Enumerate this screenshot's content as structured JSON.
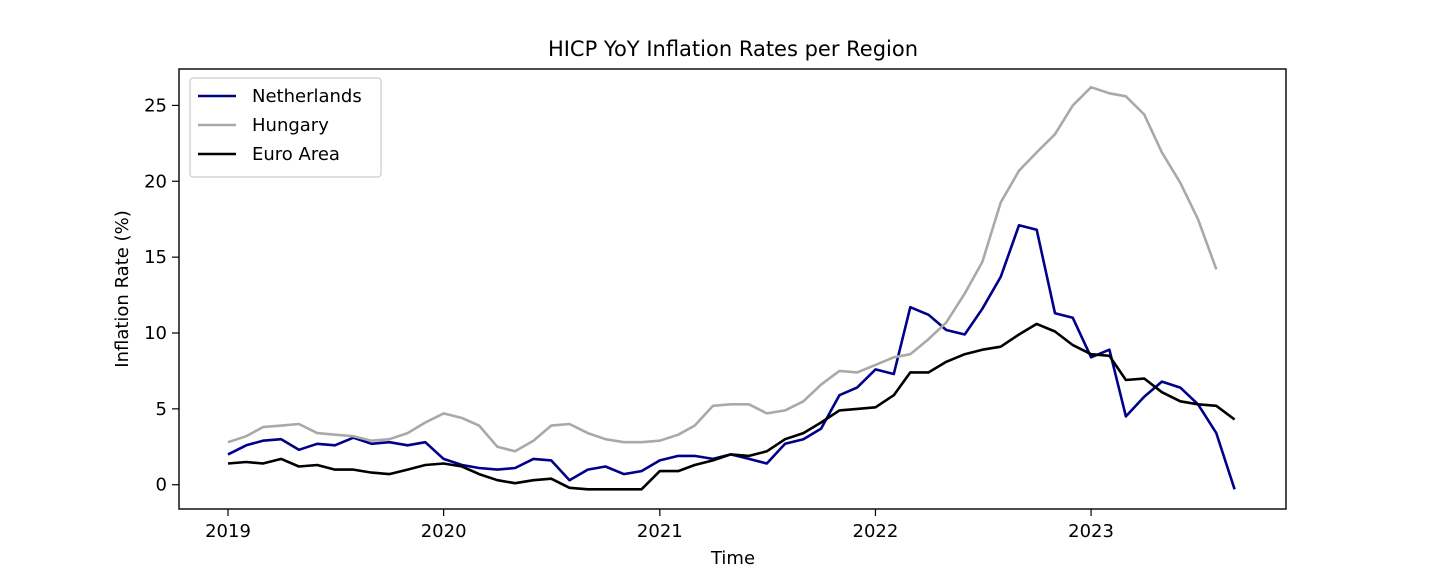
{
  "chart_data": {
    "type": "line",
    "title": "HICP YoY Inflation Rates per Region",
    "xlabel": "Time",
    "ylabel": "Inflation Rate (%)",
    "xlim": [
      "2018-10-10",
      "2023-11-27"
    ],
    "ylim": [
      -1.6,
      27.4
    ],
    "xticks": [
      {
        "date": "2019-01-01",
        "label": "2019"
      },
      {
        "date": "2020-01-01",
        "label": "2020"
      },
      {
        "date": "2021-01-01",
        "label": "2021"
      },
      {
        "date": "2022-01-01",
        "label": "2022"
      },
      {
        "date": "2023-01-01",
        "label": "2023"
      }
    ],
    "yticks": [
      0,
      5,
      10,
      15,
      20,
      25
    ],
    "grid": false,
    "legend_position": "top-left",
    "series": [
      {
        "name": "Netherlands",
        "color": "#00008b",
        "start": "2019-01",
        "values": [
          2.0,
          2.6,
          2.9,
          3.0,
          2.3,
          2.7,
          2.6,
          3.1,
          2.7,
          2.8,
          2.6,
          2.8,
          1.7,
          1.3,
          1.1,
          1.0,
          1.1,
          1.7,
          1.6,
          0.3,
          1.0,
          1.2,
          0.7,
          0.9,
          1.6,
          1.9,
          1.9,
          1.7,
          2.0,
          1.7,
          1.4,
          2.7,
          3.0,
          3.7,
          5.9,
          6.4,
          7.6,
          7.3,
          11.7,
          11.2,
          10.2,
          9.9,
          11.6,
          13.7,
          17.1,
          16.8,
          11.3,
          11.0,
          8.4,
          8.9,
          4.5,
          5.8,
          6.8,
          6.4,
          5.3,
          3.4,
          -0.3
        ]
      },
      {
        "name": "Hungary",
        "color": "#a9a9a9",
        "start": "2019-01",
        "values": [
          2.8,
          3.2,
          3.8,
          3.9,
          4.0,
          3.4,
          3.3,
          3.2,
          2.9,
          3.0,
          3.4,
          4.1,
          4.7,
          4.4,
          3.9,
          2.5,
          2.2,
          2.9,
          3.9,
          4.0,
          3.4,
          3.0,
          2.8,
          2.8,
          2.9,
          3.3,
          3.9,
          5.2,
          5.3,
          5.3,
          4.7,
          4.9,
          5.5,
          6.6,
          7.5,
          7.4,
          7.9,
          8.4,
          8.6,
          9.6,
          10.7,
          12.6,
          14.7,
          18.6,
          20.7,
          21.9,
          23.1,
          25.0,
          26.2,
          25.8,
          25.6,
          24.4,
          21.9,
          19.9,
          17.5,
          14.2
        ]
      },
      {
        "name": "Euro Area",
        "color": "#000000",
        "start": "2019-01",
        "values": [
          1.4,
          1.5,
          1.4,
          1.7,
          1.2,
          1.3,
          1.0,
          1.0,
          0.8,
          0.7,
          1.0,
          1.3,
          1.4,
          1.2,
          0.7,
          0.3,
          0.1,
          0.3,
          0.4,
          -0.2,
          -0.3,
          -0.3,
          -0.3,
          -0.3,
          0.9,
          0.9,
          1.3,
          1.6,
          2.0,
          1.9,
          2.2,
          3.0,
          3.4,
          4.1,
          4.9,
          5.0,
          5.1,
          5.9,
          7.4,
          7.4,
          8.1,
          8.6,
          8.9,
          9.1,
          9.9,
          10.6,
          10.1,
          9.2,
          8.6,
          8.5,
          6.9,
          7.0,
          6.1,
          5.5,
          5.3,
          5.2,
          4.3
        ]
      }
    ]
  }
}
